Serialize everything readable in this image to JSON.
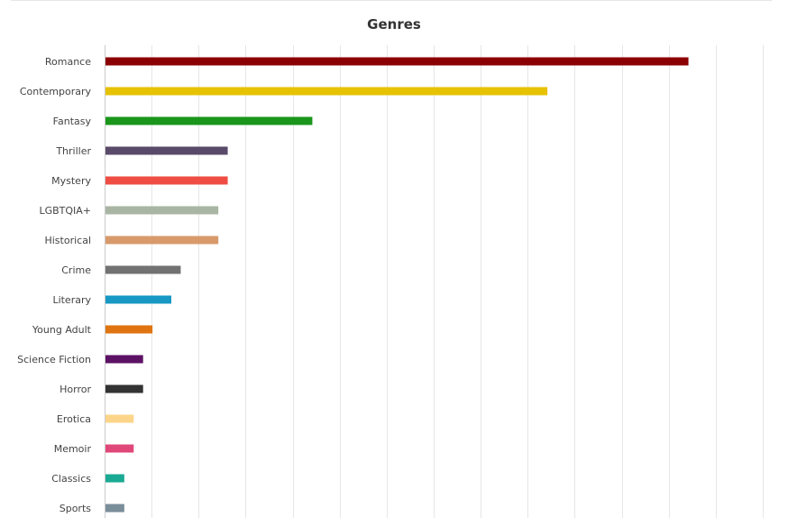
{
  "chart_data": {
    "type": "bar",
    "orientation": "horizontal",
    "title": "Genres",
    "xlabel": "",
    "ylabel": "",
    "categories": [
      "Romance",
      "Contemporary",
      "Fantasy",
      "Thriller",
      "Mystery",
      "LGBTQIA+",
      "Historical",
      "Crime",
      "Literary",
      "Young Adult",
      "Science Fiction",
      "Horror",
      "Erotica",
      "Memoir",
      "Classics",
      "Sports"
    ],
    "values": [
      62,
      47,
      22,
      13,
      13,
      12,
      12,
      8,
      7,
      5,
      4,
      4,
      3,
      3,
      2,
      2
    ],
    "colors": [
      "#8b0000",
      "#e6c200",
      "#1a961a",
      "#5a4a6a",
      "#ef4c43",
      "#a9b5a3",
      "#d89a6a",
      "#727272",
      "#1799c4",
      "#e07410",
      "#5c1264",
      "#333333",
      "#fcd58a",
      "#e0487a",
      "#1aaa94",
      "#7a8e9a"
    ],
    "xlim": [
      0,
      70
    ],
    "grid": true,
    "legend": "none"
  }
}
